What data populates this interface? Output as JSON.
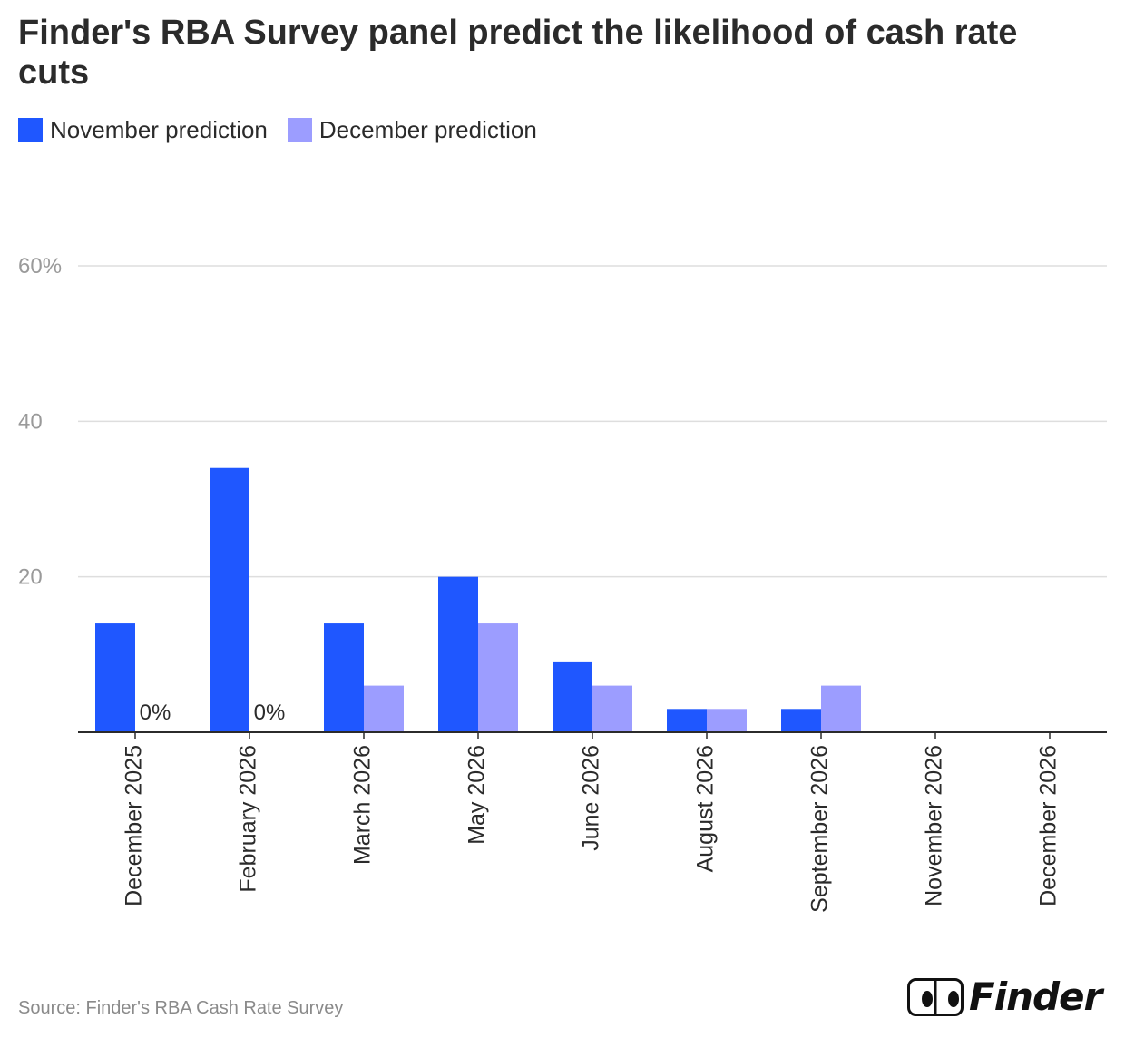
{
  "chart_data": {
    "type": "bar",
    "title": "Finder's RBA Survey panel predict the likelihood of cash rate cuts",
    "categories": [
      "December 2025",
      "February 2026",
      "March 2026",
      "May 2026",
      "June 2026",
      "August 2026",
      "September 2026",
      "November 2026",
      "December 2026"
    ],
    "series": [
      {
        "name": "November prediction",
        "color": "#1f57ff",
        "values": [
          14,
          34,
          14,
          20,
          9,
          3,
          3,
          0,
          0
        ]
      },
      {
        "name": "December prediction",
        "color": "#9c9dff",
        "values": [
          0,
          0,
          6,
          14,
          6,
          3,
          6,
          0,
          0
        ]
      }
    ],
    "zero_labels": [
      {
        "category": "December 2025",
        "text": "0%"
      },
      {
        "category": "February 2026",
        "text": "0%"
      }
    ],
    "yticks": [
      {
        "value": 20,
        "label": "20"
      },
      {
        "value": 40,
        "label": "40"
      },
      {
        "value": 60,
        "label": "60%"
      }
    ],
    "ylim": [
      0,
      60
    ],
    "xlabel": "",
    "ylabel": "",
    "grid": true,
    "legend_position": "top-left"
  },
  "footer": {
    "source": "Source: Finder's RBA Cash Rate Survey",
    "brand": "Finder"
  }
}
